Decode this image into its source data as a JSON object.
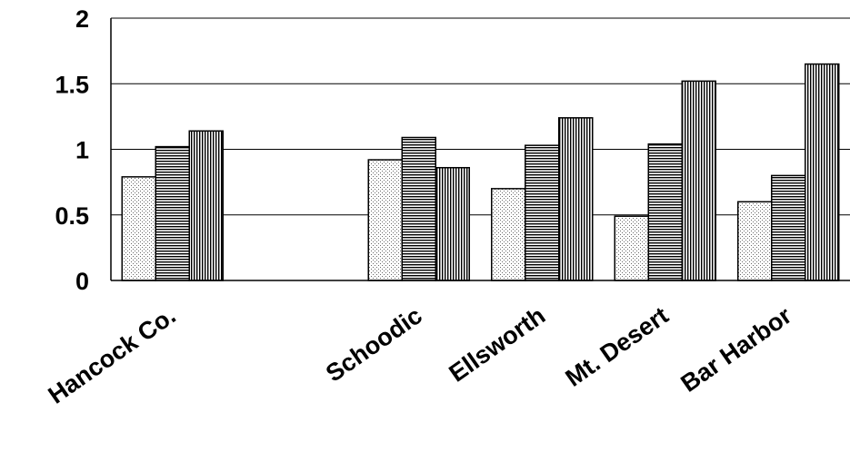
{
  "chart_data": {
    "type": "bar",
    "title": "",
    "xlabel": "",
    "ylabel": "",
    "ylim": [
      0,
      2
    ],
    "yticks": [
      "0",
      "0.5",
      "1",
      "1.5",
      "2"
    ],
    "grid": true,
    "legend": "none",
    "categories": [
      "Hancock Co.",
      "",
      "Schoodic",
      "Ellsworth",
      "Mt. Desert",
      "Bar Harbor"
    ],
    "series": [
      {
        "values": [
          0.79,
          null,
          0.92,
          0.7,
          0.49,
          0.6
        ],
        "pattern": "dots"
      },
      {
        "values": [
          1.02,
          null,
          1.09,
          1.03,
          1.04,
          0.8
        ],
        "pattern": "horizontal-lines"
      },
      {
        "values": [
          1.14,
          null,
          0.86,
          1.24,
          1.52,
          1.65
        ],
        "pattern": "vertical-lines"
      }
    ],
    "colors": {
      "bar_fill": "#ffffff",
      "bar_stroke": "#000000",
      "gridline": "#000000"
    }
  }
}
